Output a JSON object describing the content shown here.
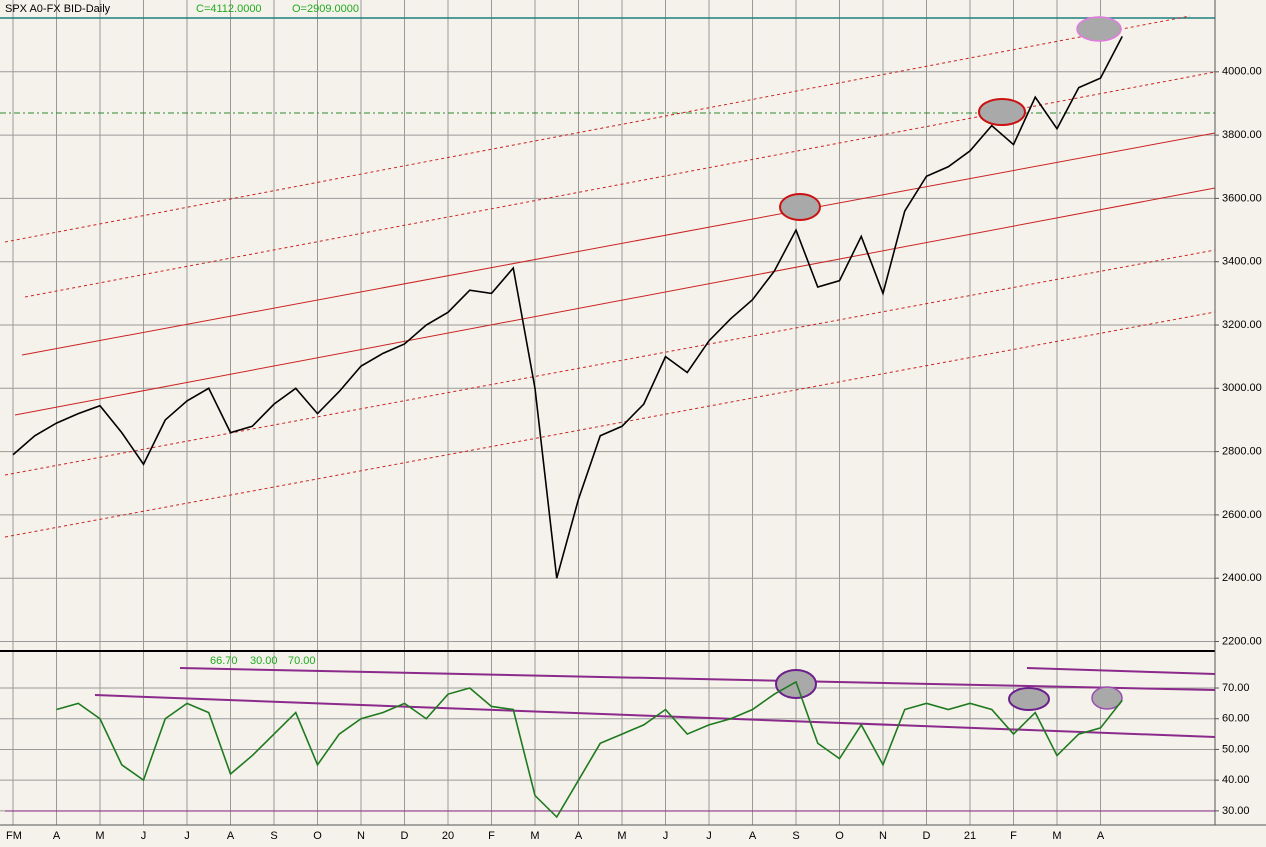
{
  "chart_data": [
    {
      "type": "line",
      "title": "SPX A0-FX BID-Daily",
      "annotations": [
        "C=4112.0000",
        "O=2909.0000"
      ],
      "categories": [
        "FM",
        null,
        "A",
        null,
        "M",
        null,
        "J",
        null,
        "J",
        null,
        "A",
        null,
        "S",
        null,
        "O",
        null,
        "N",
        null,
        "D",
        null,
        "20",
        null,
        "F",
        null,
        "M",
        null,
        "A",
        null,
        "M",
        null,
        "J",
        null,
        "J",
        null,
        "A",
        null,
        "S",
        null,
        "O",
        null,
        "N",
        null,
        "D",
        null,
        "21",
        null,
        "F",
        null,
        "M",
        null,
        "A",
        null
      ],
      "series": [
        {
          "color": "#000000",
          "values": [
            2790,
            2850,
            2890,
            2920,
            2945,
            2860,
            2760,
            2900,
            2960,
            3000,
            2860,
            2880,
            2950,
            3000,
            2920,
            2990,
            3070,
            3110,
            3140,
            3200,
            3240,
            3310,
            3300,
            3380,
            3000,
            2400,
            2650,
            2850,
            2880,
            2950,
            3100,
            3050,
            3150,
            3220,
            3280,
            3370,
            3500,
            3320,
            3340,
            3480,
            3300,
            3560,
            3670,
            3700,
            3750,
            3830,
            3770,
            3920,
            3820,
            3950,
            3980,
            4112
          ]
        }
      ],
      "ylim": [
        2170,
        4170
      ],
      "yticks": [
        {
          "value": 2200,
          "label": "2200.00"
        },
        {
          "value": 2400,
          "label": "2400.00"
        },
        {
          "value": 2600,
          "label": "2600.00"
        },
        {
          "value": 2800,
          "label": "2800.00"
        },
        {
          "value": 3000,
          "label": "3000.00"
        },
        {
          "value": 3200,
          "label": "3200.00"
        },
        {
          "value": 3400,
          "label": "3400.00"
        },
        {
          "value": 3600,
          "label": "3600.00"
        },
        {
          "value": 3800,
          "label": "3800.00"
        },
        {
          "value": 4000,
          "label": "4000.00"
        }
      ],
      "grid": true
    },
    {
      "type": "line",
      "annotations": [
        "66.70",
        "30.00",
        "70.00"
      ],
      "series": [
        {
          "color": "#1f7a1f",
          "values": [
            null,
            null,
            63,
            65,
            60,
            45,
            40,
            60,
            65,
            62,
            42,
            48,
            55,
            62,
            45,
            55,
            60,
            62,
            65,
            60,
            68,
            70,
            64,
            63,
            35,
            28,
            40,
            52,
            55,
            58,
            63,
            55,
            58,
            60,
            63,
            68,
            72,
            52,
            47,
            58,
            45,
            63,
            65,
            63,
            65,
            63,
            55,
            62,
            48,
            55,
            57,
            66
          ]
        }
      ],
      "ylim": [
        25.4,
        81.4
      ],
      "yticks": [
        {
          "value": 30,
          "label": "30.00"
        },
        {
          "value": 40,
          "label": "40.00"
        },
        {
          "value": 50,
          "label": "50.00"
        },
        {
          "value": 60,
          "label": "60.00"
        },
        {
          "value": 70,
          "label": "70.00"
        }
      ],
      "grid": true
    }
  ]
}
